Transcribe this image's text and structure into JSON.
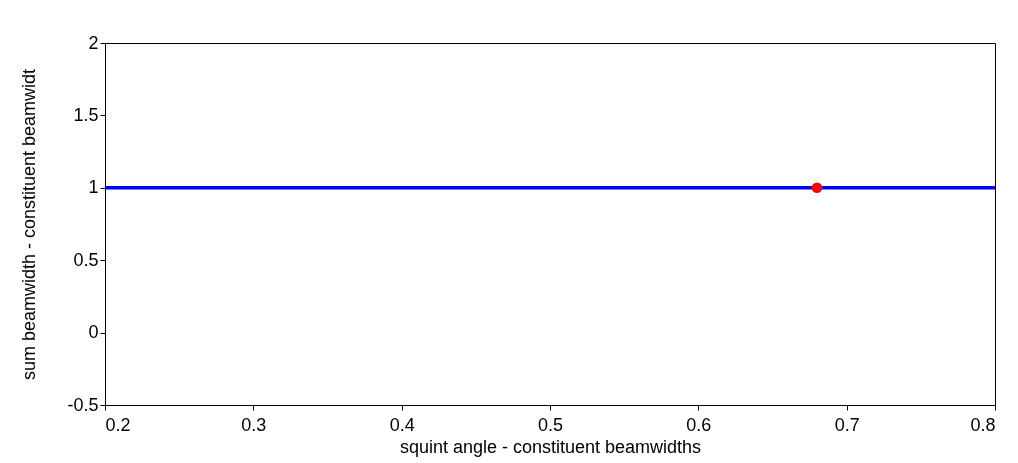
{
  "chart_data": {
    "type": "line",
    "xlabel": "squint angle - constituent beamwidths",
    "ylabel": "sum beamwidth - constituent beamwidt",
    "xlim": [
      0.2,
      0.8
    ],
    "xticks": [
      0.2,
      0.3,
      0.4,
      0.5,
      0.6,
      0.7,
      0.8
    ],
    "ylim": [
      -0.5,
      2
    ],
    "yticks": [
      -0.5,
      0,
      0.5,
      1,
      1.5,
      2
    ],
    "grid": false,
    "series": [
      {
        "color": "#0000ff",
        "x": [
          0.2,
          0.8
        ],
        "values": [
          1,
          1
        ],
        "marker": "none",
        "line_style": "solid"
      },
      {
        "type": "scatter",
        "color": "#ff0000",
        "x": [
          0.68
        ],
        "values": [
          1
        ],
        "marker": "circle"
      }
    ]
  }
}
